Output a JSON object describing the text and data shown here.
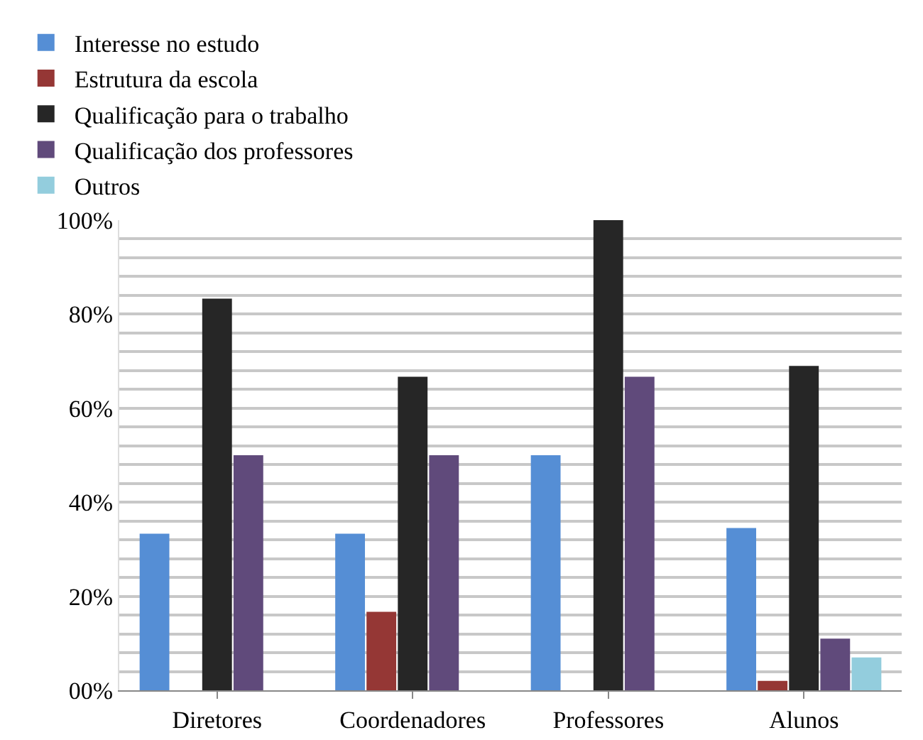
{
  "chart_data": {
    "type": "bar",
    "categories": [
      "Diretores",
      "Coordenadores",
      "Professores",
      "Alunos"
    ],
    "series": [
      {
        "name": "Interesse no estudo",
        "color": "#558ed5",
        "values": [
          33.3,
          33.3,
          50,
          34.5
        ]
      },
      {
        "name": "Estrutura da escola",
        "color": "#953735",
        "values": [
          0,
          16.7,
          0,
          2
        ]
      },
      {
        "name": "Qualificação para o trabalho",
        "color": "#262626",
        "values": [
          83.3,
          66.7,
          100,
          69
        ]
      },
      {
        "name": "Qualificação dos professores",
        "color": "#604a7b",
        "values": [
          50,
          50,
          66.7,
          11
        ]
      },
      {
        "name": "Outros",
        "color": "#93cddd",
        "values": [
          0,
          0,
          0,
          7
        ]
      }
    ],
    "ylim": [
      0,
      100
    ],
    "yticks": [
      {
        "value": 0,
        "label": "00%"
      },
      {
        "value": 4,
        "label": null
      },
      {
        "value": 8,
        "label": null
      },
      {
        "value": 12,
        "label": null
      },
      {
        "value": 16,
        "label": null
      },
      {
        "value": 20,
        "label": "20%"
      },
      {
        "value": 24,
        "label": null
      },
      {
        "value": 28,
        "label": null
      },
      {
        "value": 32,
        "label": null
      },
      {
        "value": 36,
        "label": null
      },
      {
        "value": 40,
        "label": "40%"
      },
      {
        "value": 44,
        "label": null
      },
      {
        "value": 48,
        "label": null
      },
      {
        "value": 52,
        "label": null
      },
      {
        "value": 56,
        "label": null
      },
      {
        "value": 60,
        "label": "60%"
      },
      {
        "value": 64,
        "label": null
      },
      {
        "value": 68,
        "label": null
      },
      {
        "value": 72,
        "label": null
      },
      {
        "value": 76,
        "label": null
      },
      {
        "value": 80,
        "label": "80%"
      },
      {
        "value": 84,
        "label": null
      },
      {
        "value": 88,
        "label": null
      },
      {
        "value": 92,
        "label": null
      },
      {
        "value": 96,
        "label": null
      },
      {
        "value": 100,
        "label": "100%"
      }
    ],
    "grid": "y",
    "legend": "top"
  }
}
